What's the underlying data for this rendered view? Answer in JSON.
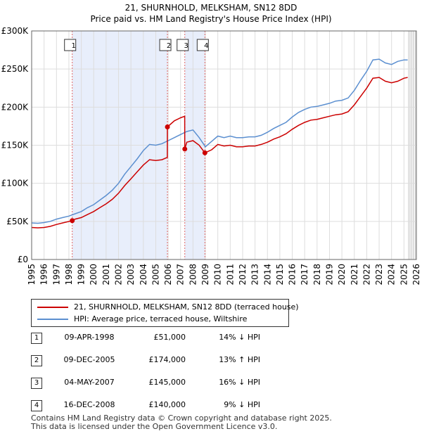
{
  "colors": {
    "property_line": "#cc0000",
    "hpi_line": "#5b8fd0",
    "highlight": "#e8eefb",
    "marker_line": "#e06666"
  },
  "chart_data": {
    "type": "line",
    "title": "21, SHURNHOLD, MELKSHAM, SN12 8DD",
    "subtitle": "Price paid vs. HM Land Registry's House Price Index (HPI)",
    "xlim": [
      1995,
      2026
    ],
    "ylim": [
      0,
      300000
    ],
    "y_ticks": [
      0,
      50000,
      100000,
      150000,
      200000,
      250000,
      300000
    ],
    "y_tick_labels": [
      "£0",
      "£50K",
      "£100K",
      "£150K",
      "£200K",
      "£250K",
      "£300K"
    ],
    "x_ticks": [
      "1995",
      "1996",
      "1997",
      "1998",
      "1999",
      "2000",
      "2001",
      "2002",
      "2003",
      "2004",
      "2005",
      "2006",
      "2007",
      "2008",
      "2009",
      "2010",
      "2011",
      "2012",
      "2013",
      "2014",
      "2015",
      "2016",
      "2017",
      "2018",
      "2019",
      "2020",
      "2021",
      "2022",
      "2023",
      "2024",
      "2025",
      "2026"
    ],
    "highlight_ranges": [
      [
        1998.27,
        2005.94
      ],
      [
        2007.34,
        2008.96
      ]
    ],
    "projection_start": 2025.3,
    "series": [
      {
        "name": "hpi",
        "x": [
          1995.0,
          1995.5,
          1996.0,
          1996.5,
          1997.0,
          1997.5,
          1998.0,
          1998.5,
          1999.0,
          1999.5,
          2000.0,
          2000.5,
          2001.0,
          2001.5,
          2002.0,
          2002.5,
          2003.0,
          2003.5,
          2004.0,
          2004.5,
          2005.0,
          2005.5,
          2006.0,
          2006.5,
          2007.0,
          2007.5,
          2008.0,
          2008.5,
          2009.0,
          2009.5,
          2010.0,
          2010.5,
          2011.0,
          2011.5,
          2012.0,
          2012.5,
          2013.0,
          2013.5,
          2014.0,
          2014.5,
          2015.0,
          2015.5,
          2016.0,
          2016.5,
          2017.0,
          2017.5,
          2018.0,
          2018.5,
          2019.0,
          2019.5,
          2020.0,
          2020.5,
          2021.0,
          2021.5,
          2022.0,
          2022.5,
          2023.0,
          2023.5,
          2024.0,
          2024.5,
          2025.0,
          2025.3
        ],
        "values": [
          48000,
          47500,
          48500,
          50000,
          53000,
          55000,
          57000,
          60000,
          63000,
          68000,
          72000,
          78000,
          84000,
          91000,
          100000,
          112000,
          122000,
          132000,
          143000,
          151000,
          150000,
          152000,
          156000,
          160000,
          164000,
          168000,
          170000,
          160000,
          148000,
          155000,
          162000,
          160000,
          162000,
          160000,
          160000,
          161000,
          161000,
          163000,
          167000,
          172000,
          176000,
          180000,
          187000,
          193000,
          197000,
          200000,
          201000,
          203000,
          205000,
          208000,
          209000,
          212000,
          222000,
          235000,
          247000,
          262000,
          263000,
          258000,
          256000,
          260000,
          262000,
          262000
        ]
      },
      {
        "name": "property",
        "x": [
          1995.0,
          1995.5,
          1996.0,
          1996.5,
          1997.0,
          1997.5,
          1998.27,
          1998.5,
          1999.0,
          1999.5,
          2000.0,
          2000.5,
          2001.0,
          2001.5,
          2002.0,
          2002.5,
          2003.0,
          2003.5,
          2004.0,
          2004.5,
          2005.0,
          2005.5,
          2005.93,
          2005.94,
          2006.5,
          2007.0,
          2007.33,
          2007.34,
          2007.5,
          2008.0,
          2008.5,
          2008.96,
          2009.5,
          2010.0,
          2010.5,
          2011.0,
          2011.5,
          2012.0,
          2012.5,
          2013.0,
          2013.5,
          2014.0,
          2014.5,
          2015.0,
          2015.5,
          2016.0,
          2016.5,
          2017.0,
          2017.5,
          2018.0,
          2018.5,
          2019.0,
          2019.5,
          2020.0,
          2020.5,
          2021.0,
          2021.5,
          2022.0,
          2022.5,
          2023.0,
          2023.5,
          2024.0,
          2024.5,
          2025.0,
          2025.3
        ],
        "values": [
          42000,
          41500,
          42000,
          43500,
          46000,
          48000,
          51000,
          53000,
          55000,
          59000,
          63000,
          68000,
          73000,
          79000,
          87000,
          97000,
          106000,
          115000,
          124000,
          131000,
          130000,
          131000,
          134000,
          174000,
          182000,
          186000,
          188000,
          145000,
          154000,
          156000,
          150000,
          140000,
          144000,
          151000,
          149000,
          150000,
          148000,
          148000,
          149000,
          149000,
          151000,
          154000,
          158000,
          161000,
          165000,
          171000,
          176000,
          180000,
          183000,
          184000,
          186000,
          188000,
          190000,
          191000,
          194000,
          203000,
          214000,
          225000,
          238000,
          239000,
          234000,
          232000,
          234000,
          238000,
          239000
        ]
      }
    ],
    "sale_points": [
      {
        "x": 1998.27,
        "y": 51000
      },
      {
        "x": 2005.94,
        "y": 174000
      },
      {
        "x": 2007.34,
        "y": 145000
      },
      {
        "x": 2008.96,
        "y": 140000
      }
    ]
  },
  "legend": {
    "property_label": "21, SHURNHOLD, MELKSHAM, SN12 8DD (terraced house)",
    "hpi_label": "HPI: Average price, terraced house, Wiltshire"
  },
  "sales": [
    {
      "num": "1",
      "date": "09-APR-1998",
      "price": "£51,000",
      "hpi": "14% ↓ HPI"
    },
    {
      "num": "2",
      "date": "09-DEC-2005",
      "price": "£174,000",
      "hpi": "13% ↑ HPI"
    },
    {
      "num": "3",
      "date": "04-MAY-2007",
      "price": "£145,000",
      "hpi": "16% ↓ HPI"
    },
    {
      "num": "4",
      "date": "16-DEC-2008",
      "price": "£140,000",
      "hpi": "9% ↓ HPI"
    }
  ],
  "footer": {
    "line1": "Contains HM Land Registry data © Crown copyright and database right 2025.",
    "line2": "This data is licensed under the Open Government Licence v3.0."
  }
}
